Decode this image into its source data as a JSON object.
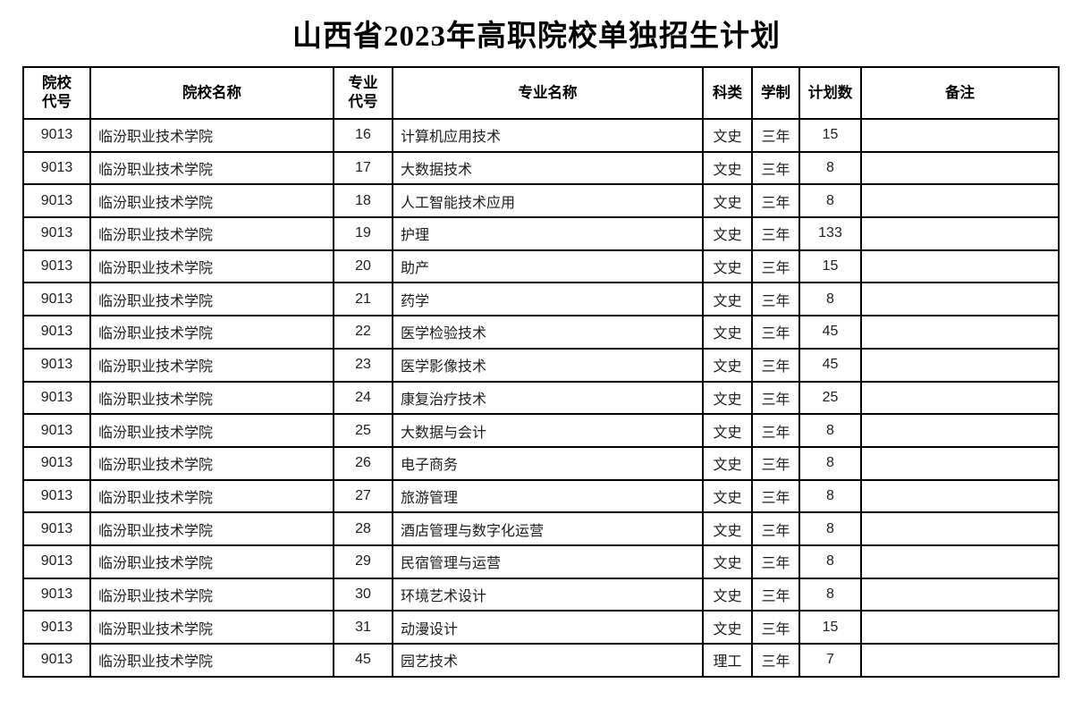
{
  "title": "山西省2023年高职院校单独招生计划",
  "table": {
    "headers": {
      "college_code": "院校\n代号",
      "college_name": "院校名称",
      "major_code": "专业\n代号",
      "major_name": "专业名称",
      "subject_type": "科类",
      "duration": "学制",
      "plan_count": "计划数",
      "remark": "备注"
    },
    "rows": [
      [
        "9013",
        "临汾职业技术学院",
        "16",
        "计算机应用技术",
        "文史",
        "三年",
        "15",
        ""
      ],
      [
        "9013",
        "临汾职业技术学院",
        "17",
        "大数据技术",
        "文史",
        "三年",
        "8",
        ""
      ],
      [
        "9013",
        "临汾职业技术学院",
        "18",
        "人工智能技术应用",
        "文史",
        "三年",
        "8",
        ""
      ],
      [
        "9013",
        "临汾职业技术学院",
        "19",
        "护理",
        "文史",
        "三年",
        "133",
        ""
      ],
      [
        "9013",
        "临汾职业技术学院",
        "20",
        "助产",
        "文史",
        "三年",
        "15",
        ""
      ],
      [
        "9013",
        "临汾职业技术学院",
        "21",
        "药学",
        "文史",
        "三年",
        "8",
        ""
      ],
      [
        "9013",
        "临汾职业技术学院",
        "22",
        "医学检验技术",
        "文史",
        "三年",
        "45",
        ""
      ],
      [
        "9013",
        "临汾职业技术学院",
        "23",
        "医学影像技术",
        "文史",
        "三年",
        "45",
        ""
      ],
      [
        "9013",
        "临汾职业技术学院",
        "24",
        "康复治疗技术",
        "文史",
        "三年",
        "25",
        ""
      ],
      [
        "9013",
        "临汾职业技术学院",
        "25",
        "大数据与会计",
        "文史",
        "三年",
        "8",
        ""
      ],
      [
        "9013",
        "临汾职业技术学院",
        "26",
        "电子商务",
        "文史",
        "三年",
        "8",
        ""
      ],
      [
        "9013",
        "临汾职业技术学院",
        "27",
        "旅游管理",
        "文史",
        "三年",
        "8",
        ""
      ],
      [
        "9013",
        "临汾职业技术学院",
        "28",
        "酒店管理与数字化运营",
        "文史",
        "三年",
        "8",
        ""
      ],
      [
        "9013",
        "临汾职业技术学院",
        "29",
        "民宿管理与运营",
        "文史",
        "三年",
        "8",
        ""
      ],
      [
        "9013",
        "临汾职业技术学院",
        "30",
        "环境艺术设计",
        "文史",
        "三年",
        "8",
        ""
      ],
      [
        "9013",
        "临汾职业技术学院",
        "31",
        "动漫设计",
        "文史",
        "三年",
        "15",
        ""
      ],
      [
        "9013",
        "临汾职业技术学院",
        "45",
        "园艺技术",
        "理工",
        "三年",
        "7",
        ""
      ]
    ]
  }
}
